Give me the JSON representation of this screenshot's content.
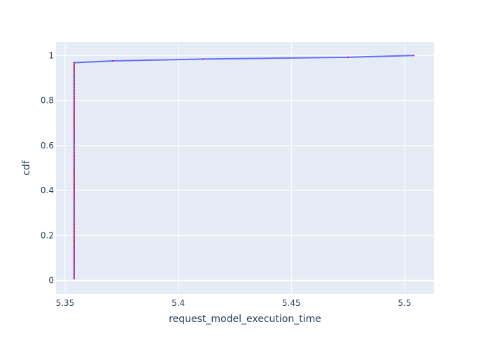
{
  "chart_data": {
    "type": "line",
    "xlabel": "request_model_execution_time",
    "ylabel": "cdf",
    "xlim": [
      5.346,
      5.513
    ],
    "ylim": [
      -0.06,
      1.06
    ],
    "xticks": [
      5.35,
      5.4,
      5.45,
      5.5
    ],
    "xtick_labels": [
      "5.35",
      "5.4",
      "5.45",
      "5.5"
    ],
    "yticks": [
      0,
      0.2,
      0.4,
      0.6,
      0.8,
      1
    ],
    "ytick_labels": [
      "0",
      "0.2",
      "0.4",
      "0.6",
      "0.8",
      "1"
    ],
    "grid": true,
    "colors": {
      "plot_bg": "#e5ecf6",
      "grid": "#ffffff",
      "line": "#636efa",
      "marker": "#dc143c",
      "text": "#2a3f5f"
    },
    "series": [
      {
        "mode": "lines+markers",
        "x": [
          5.354,
          5.354,
          5.354,
          5.354,
          5.354,
          5.354,
          5.354,
          5.354,
          5.354,
          5.354,
          5.354,
          5.354,
          5.354,
          5.354,
          5.354,
          5.354,
          5.354,
          5.354,
          5.354,
          5.354,
          5.354,
          5.354,
          5.354,
          5.354,
          5.354,
          5.354,
          5.354,
          5.354,
          5.354,
          5.354,
          5.354,
          5.354,
          5.354,
          5.354,
          5.354,
          5.354,
          5.354,
          5.354,
          5.354,
          5.354,
          5.354,
          5.354,
          5.354,
          5.354,
          5.354,
          5.354,
          5.354,
          5.354,
          5.354,
          5.354,
          5.354,
          5.354,
          5.354,
          5.354,
          5.354,
          5.354,
          5.354,
          5.354,
          5.354,
          5.354,
          5.354,
          5.354,
          5.354,
          5.354,
          5.354,
          5.354,
          5.354,
          5.354,
          5.354,
          5.354,
          5.354,
          5.354,
          5.354,
          5.354,
          5.354,
          5.354,
          5.354,
          5.354,
          5.354,
          5.354,
          5.354,
          5.354,
          5.354,
          5.354,
          5.354,
          5.354,
          5.354,
          5.354,
          5.354,
          5.354,
          5.354,
          5.354,
          5.354,
          5.354,
          5.354,
          5.354,
          5.354,
          5.371,
          5.411,
          5.475,
          5.504
        ],
        "y": [
          0.008,
          0.018,
          0.028,
          0.038,
          0.048,
          0.058,
          0.068,
          0.078,
          0.088,
          0.098,
          0.108,
          0.118,
          0.128,
          0.138,
          0.148,
          0.158,
          0.168,
          0.178,
          0.188,
          0.198,
          0.208,
          0.218,
          0.228,
          0.238,
          0.248,
          0.258,
          0.268,
          0.278,
          0.288,
          0.298,
          0.308,
          0.318,
          0.328,
          0.338,
          0.348,
          0.358,
          0.368,
          0.378,
          0.388,
          0.398,
          0.408,
          0.418,
          0.428,
          0.438,
          0.448,
          0.458,
          0.468,
          0.478,
          0.488,
          0.498,
          0.508,
          0.518,
          0.528,
          0.538,
          0.548,
          0.558,
          0.568,
          0.578,
          0.588,
          0.598,
          0.608,
          0.618,
          0.628,
          0.638,
          0.648,
          0.658,
          0.668,
          0.678,
          0.688,
          0.698,
          0.708,
          0.718,
          0.728,
          0.738,
          0.748,
          0.758,
          0.768,
          0.778,
          0.788,
          0.798,
          0.808,
          0.818,
          0.828,
          0.838,
          0.848,
          0.858,
          0.868,
          0.878,
          0.888,
          0.898,
          0.908,
          0.918,
          0.928,
          0.938,
          0.948,
          0.958,
          0.968,
          0.976,
          0.984,
          0.992,
          1.0
        ]
      }
    ]
  }
}
